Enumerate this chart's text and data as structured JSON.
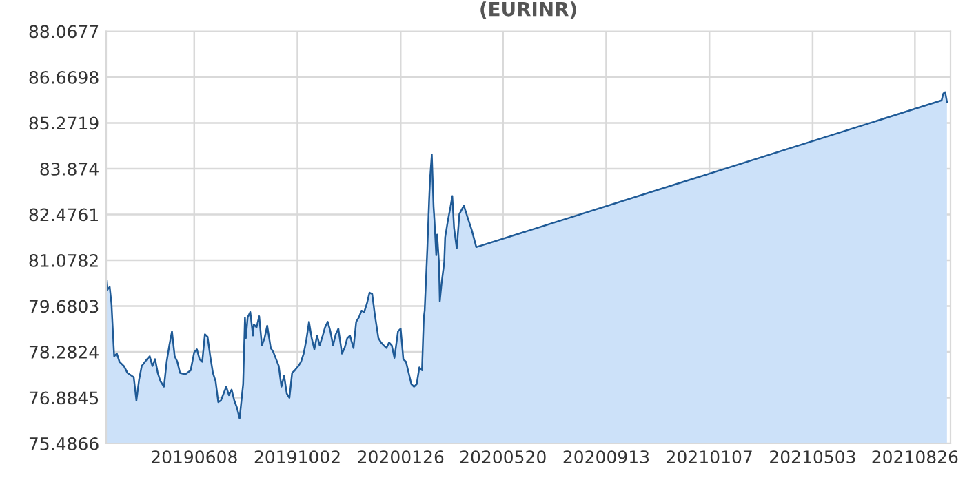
{
  "chart_data": {
    "type": "area",
    "title": "(EURINR)",
    "xlim": [
      "2019-03-01",
      "2021-10-05"
    ],
    "xticks": [
      {
        "value": "2019-06-08",
        "label": "20190608"
      },
      {
        "value": "2019-10-02",
        "label": "20191002"
      },
      {
        "value": "2020-01-26",
        "label": "20200126"
      },
      {
        "value": "2020-05-20",
        "label": "20200520"
      },
      {
        "value": "2020-09-13",
        "label": "20200913"
      },
      {
        "value": "2021-01-07",
        "label": "20210107"
      },
      {
        "value": "2021-05-03",
        "label": "20210503"
      },
      {
        "value": "2021-08-26",
        "label": "20210826"
      }
    ],
    "ylim": [
      75.4866,
      88.0677
    ],
    "yticks": [
      75.4866,
      76.8845,
      78.2824,
      79.6803,
      81.0782,
      82.4761,
      83.874,
      85.2719,
      86.6698,
      88.0677
    ],
    "grid": true,
    "series": [
      {
        "color": "#1f5a96",
        "x": [
          "2019-03-01",
          "2019-03-02",
          "2019-03-05",
          "2019-03-07",
          "2019-03-10",
          "2019-03-13",
          "2019-03-16",
          "2019-03-21",
          "2019-03-25",
          "2019-04-01",
          "2019-04-04",
          "2019-04-07",
          "2019-04-10",
          "2019-04-16",
          "2019-04-19",
          "2019-04-22",
          "2019-04-25",
          "2019-04-28",
          "2019-05-01",
          "2019-05-05",
          "2019-05-08",
          "2019-05-11",
          "2019-05-14",
          "2019-05-17",
          "2019-05-20",
          "2019-05-23",
          "2019-05-29",
          "2019-06-04",
          "2019-06-08",
          "2019-06-11",
          "2019-06-14",
          "2019-06-17",
          "2019-06-20",
          "2019-06-23",
          "2019-06-26",
          "2019-06-29",
          "2019-07-02",
          "2019-07-05",
          "2019-07-08",
          "2019-07-11",
          "2019-07-14",
          "2019-07-17",
          "2019-07-20",
          "2019-07-23",
          "2019-07-26",
          "2019-07-29",
          "2019-08-02",
          "2019-08-04",
          "2019-08-05",
          "2019-08-07",
          "2019-08-10",
          "2019-08-13",
          "2019-08-14",
          "2019-08-17",
          "2019-08-20",
          "2019-08-23",
          "2019-08-26",
          "2019-08-29",
          "2019-09-02",
          "2019-09-05",
          "2019-09-08",
          "2019-09-11",
          "2019-09-14",
          "2019-09-17",
          "2019-09-20",
          "2019-09-23",
          "2019-09-26",
          "2019-09-29",
          "2019-10-03",
          "2019-10-06",
          "2019-10-09",
          "2019-10-12",
          "2019-10-15",
          "2019-10-18",
          "2019-10-21",
          "2019-10-24",
          "2019-10-27",
          "2019-10-30",
          "2019-11-02",
          "2019-11-05",
          "2019-11-08",
          "2019-11-11",
          "2019-11-14",
          "2019-11-17",
          "2019-11-21",
          "2019-11-24",
          "2019-11-27",
          "2019-11-30",
          "2019-12-04",
          "2019-12-07",
          "2019-12-10",
          "2019-12-13",
          "2019-12-16",
          "2019-12-19",
          "2019-12-22",
          "2019-12-25",
          "2019-12-28",
          "2020-01-01",
          "2020-01-04",
          "2020-01-07",
          "2020-01-10",
          "2020-01-13",
          "2020-01-16",
          "2020-01-19",
          "2020-01-23",
          "2020-01-26",
          "2020-01-29",
          "2020-02-01",
          "2020-02-04",
          "2020-02-07",
          "2020-02-10",
          "2020-02-13",
          "2020-02-16",
          "2020-02-19",
          "2020-02-21",
          "2020-02-22",
          "2020-02-24",
          "2020-02-25",
          "2020-02-27",
          "2020-02-28",
          "2020-03-01",
          "2020-03-03",
          "2020-03-04",
          "2020-03-06",
          "2020-03-07",
          "2020-03-09",
          "2020-03-10",
          "2020-03-12",
          "2020-03-15",
          "2020-03-16",
          "2020-03-19",
          "2020-03-22",
          "2020-03-24",
          "2020-03-26",
          "2020-03-29",
          "2020-04-01",
          "2020-04-06",
          "2020-04-09",
          "2020-04-15",
          "2020-04-20",
          "2021-09-25",
          "2021-09-27",
          "2021-09-29",
          "2021-10-01"
        ],
        "values": [
          80.47,
          80.17,
          80.26,
          79.75,
          78.15,
          78.23,
          77.98,
          77.85,
          77.64,
          77.51,
          76.8,
          77.43,
          77.85,
          78.06,
          78.15,
          77.85,
          78.06,
          77.64,
          77.39,
          77.22,
          77.98,
          78.48,
          78.91,
          78.15,
          77.98,
          77.64,
          77.6,
          77.72,
          78.27,
          78.36,
          78.06,
          77.98,
          78.82,
          78.74,
          78.15,
          77.64,
          77.39,
          76.75,
          76.8,
          77.01,
          77.22,
          76.96,
          77.13,
          76.8,
          76.58,
          76.25,
          77.3,
          79.33,
          78.7,
          79.33,
          79.5,
          78.78,
          79.12,
          79.03,
          79.37,
          78.48,
          78.7,
          79.08,
          78.4,
          78.27,
          78.06,
          77.85,
          77.22,
          77.56,
          77.01,
          76.88,
          77.64,
          77.72,
          77.85,
          77.98,
          78.23,
          78.65,
          79.2,
          78.7,
          78.36,
          78.78,
          78.48,
          78.74,
          79.03,
          79.2,
          78.91,
          78.48,
          78.82,
          78.99,
          78.23,
          78.4,
          78.7,
          78.78,
          78.4,
          79.2,
          79.33,
          79.54,
          79.5,
          79.75,
          80.09,
          80.05,
          79.41,
          78.7,
          78.57,
          78.48,
          78.4,
          78.57,
          78.48,
          78.1,
          78.91,
          78.99,
          78.06,
          77.98,
          77.64,
          77.3,
          77.22,
          77.3,
          77.81,
          77.72,
          79.33,
          79.54,
          80.81,
          81.44,
          82.92,
          83.55,
          84.31,
          82.71,
          82.28,
          81.23,
          81.86,
          81.02,
          79.83,
          80.38,
          81.02,
          81.78,
          82.28,
          82.71,
          83.04,
          82.07,
          81.44,
          82.49,
          82.75,
          82.49,
          81.99,
          81.48,
          85.96,
          86.17,
          86.21,
          85.91
        ]
      }
    ]
  }
}
